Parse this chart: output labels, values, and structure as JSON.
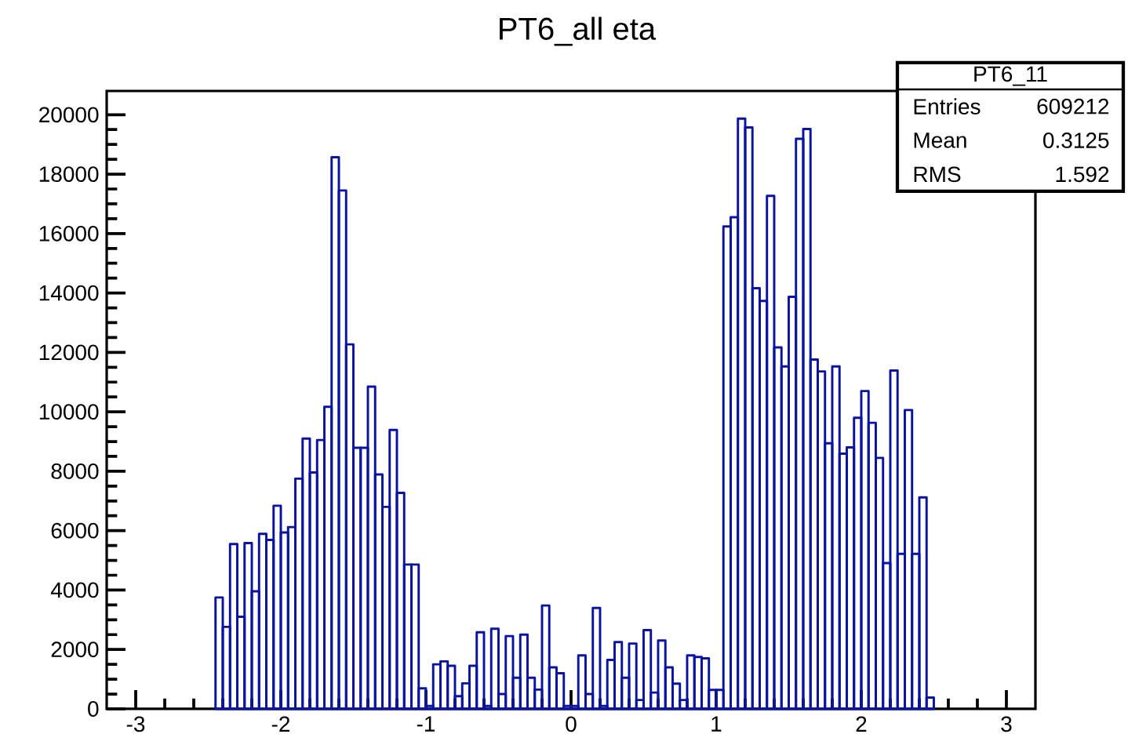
{
  "chart_data": {
    "type": "histogram",
    "title": "PT6_all eta",
    "annotations": [
      "PT6_11",
      "Entries",
      "609212",
      "Mean",
      "0.3125",
      "RMS",
      "1.592"
    ],
    "color": "#0a14a0",
    "bins": [
      -2.45,
      -2.4,
      -2.35,
      -2.3,
      -2.25,
      -2.2,
      -2.15,
      -2.1,
      -2.05,
      -2,
      -1.95,
      -1.9,
      -1.85,
      -1.8,
      -1.75,
      -1.7,
      -1.65,
      -1.6,
      -1.55,
      -1.5,
      -1.45,
      -1.4,
      -1.35,
      -1.3,
      -1.25,
      -1.2,
      -1.15,
      -1.1,
      -1.05,
      -1,
      -0.95,
      -0.9,
      -0.85,
      -0.8,
      -0.75,
      -0.7,
      -0.65,
      -0.6,
      -0.55,
      -0.5,
      -0.45,
      -0.4,
      -0.35,
      -0.3,
      -0.25,
      -0.2,
      -0.15,
      -0.1,
      -0.05,
      0,
      0.05,
      0.1,
      0.15,
      0.2,
      0.25,
      0.3,
      0.35,
      0.4,
      0.45,
      0.5,
      0.55,
      0.6,
      0.65,
      0.7,
      0.75,
      0.8,
      0.85,
      0.9,
      0.95,
      1,
      1.05,
      1.1,
      1.15,
      1.2,
      1.25,
      1.3,
      1.35,
      1.4,
      1.45,
      1.5,
      1.55,
      1.6,
      1.65,
      1.7,
      1.75,
      1.8,
      1.85,
      1.9,
      1.95,
      2,
      2.05,
      2.1,
      2.15,
      2.2,
      2.25,
      2.3,
      2.35,
      2.4,
      2.45,
      2.5
    ],
    "values": [
      3750,
      2760,
      5550,
      3100,
      5580,
      3960,
      5890,
      5690,
      6840,
      5940,
      6120,
      7750,
      9100,
      7960,
      9050,
      10170,
      18570,
      17450,
      12270,
      8790,
      8790,
      10850,
      7890,
      6800,
      9390,
      7270,
      4860,
      4860,
      690,
      100,
      1500,
      1600,
      1450,
      430,
      860,
      1450,
      2580,
      100,
      2700,
      500,
      2450,
      1050,
      2500,
      1050,
      650,
      3480,
      1400,
      1200,
      100,
      100,
      1800,
      500,
      3400,
      100,
      1650,
      2250,
      1050,
      2200,
      300,
      2650,
      550,
      2300,
      1400,
      850,
      300,
      1800,
      1750,
      1700,
      640,
      640,
      16240,
      16550,
      19870,
      19570,
      14160,
      13730,
      17270,
      12170,
      11530,
      13870,
      19190,
      19520,
      11760,
      11360,
      8940,
      11530,
      8590,
      8800,
      9800,
      10700,
      9630,
      8450,
      4910,
      11390,
      5220,
      10060,
      5220,
      7120,
      380
    ],
    "xlim": [
      -3.2,
      3.2
    ],
    "ylim": [
      0,
      20800
    ],
    "xticks": [
      -3,
      -2,
      -1,
      0,
      1,
      2,
      3
    ],
    "yticks": [
      0,
      2000,
      4000,
      6000,
      8000,
      10000,
      12000,
      14000,
      16000,
      18000,
      20000
    ]
  }
}
